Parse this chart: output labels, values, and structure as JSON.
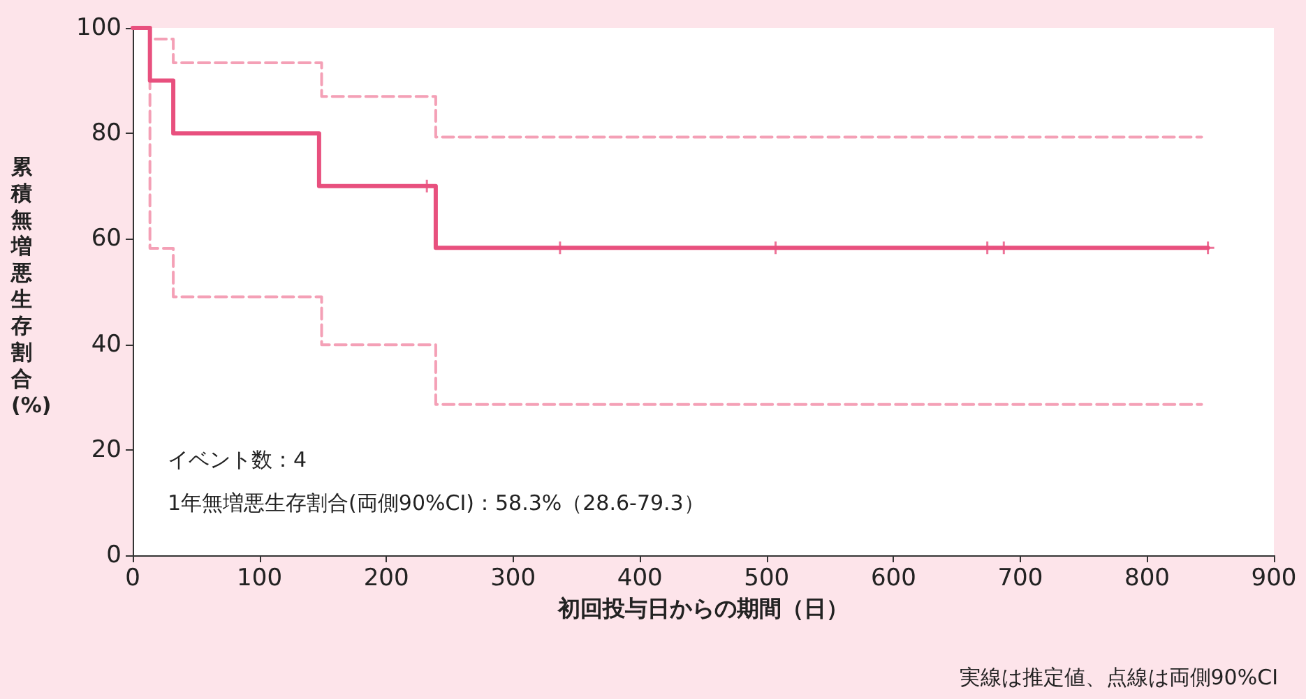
{
  "chart_data": {
    "type": "step",
    "xlabel": "初回投与日からの期間（日）",
    "ylabel": "累積無増悪生存割合(%)",
    "xlim": [
      0,
      900
    ],
    "xticks": [
      0,
      100,
      200,
      300,
      400,
      500,
      600,
      700,
      800,
      900
    ],
    "ylim": [
      0,
      100
    ],
    "yticks": [
      0,
      20,
      40,
      60,
      80,
      100
    ],
    "grid": false,
    "annotations": [
      "イベント数：4",
      "1年無増悪生存割合(両側90%CI)：58.3%（28.6-79.3）",
      "実線は推定値、点線は両側90%CI"
    ],
    "series": [
      {
        "color": "#f4a0b6",
        "line_style": "dashed",
        "x": [
          0,
          13.6,
          32,
          149,
          239,
          843
        ],
        "values": [
          100,
          97.9,
          93.4,
          87,
          79.3,
          79.3
        ]
      },
      {
        "color": "#f4a0b6",
        "line_style": "dashed",
        "x": [
          0,
          13.6,
          32,
          149,
          239,
          843
        ],
        "values": [
          100,
          58.2,
          49,
          39.9,
          28.6,
          28.6
        ]
      },
      {
        "color": "#e8507e",
        "line_style": "solid",
        "x": [
          0,
          13.6,
          32,
          147,
          239,
          848
        ],
        "values": [
          100,
          90,
          80,
          70,
          58.3,
          58.3
        ]
      },
      {
        "type": "scatter",
        "marker": "cross",
        "color": "#e8507e",
        "x": [
          232,
          337,
          507,
          674,
          687,
          848
        ],
        "values": [
          70,
          58.3,
          58.3,
          58.3,
          58.3,
          58.3
        ]
      }
    ]
  }
}
